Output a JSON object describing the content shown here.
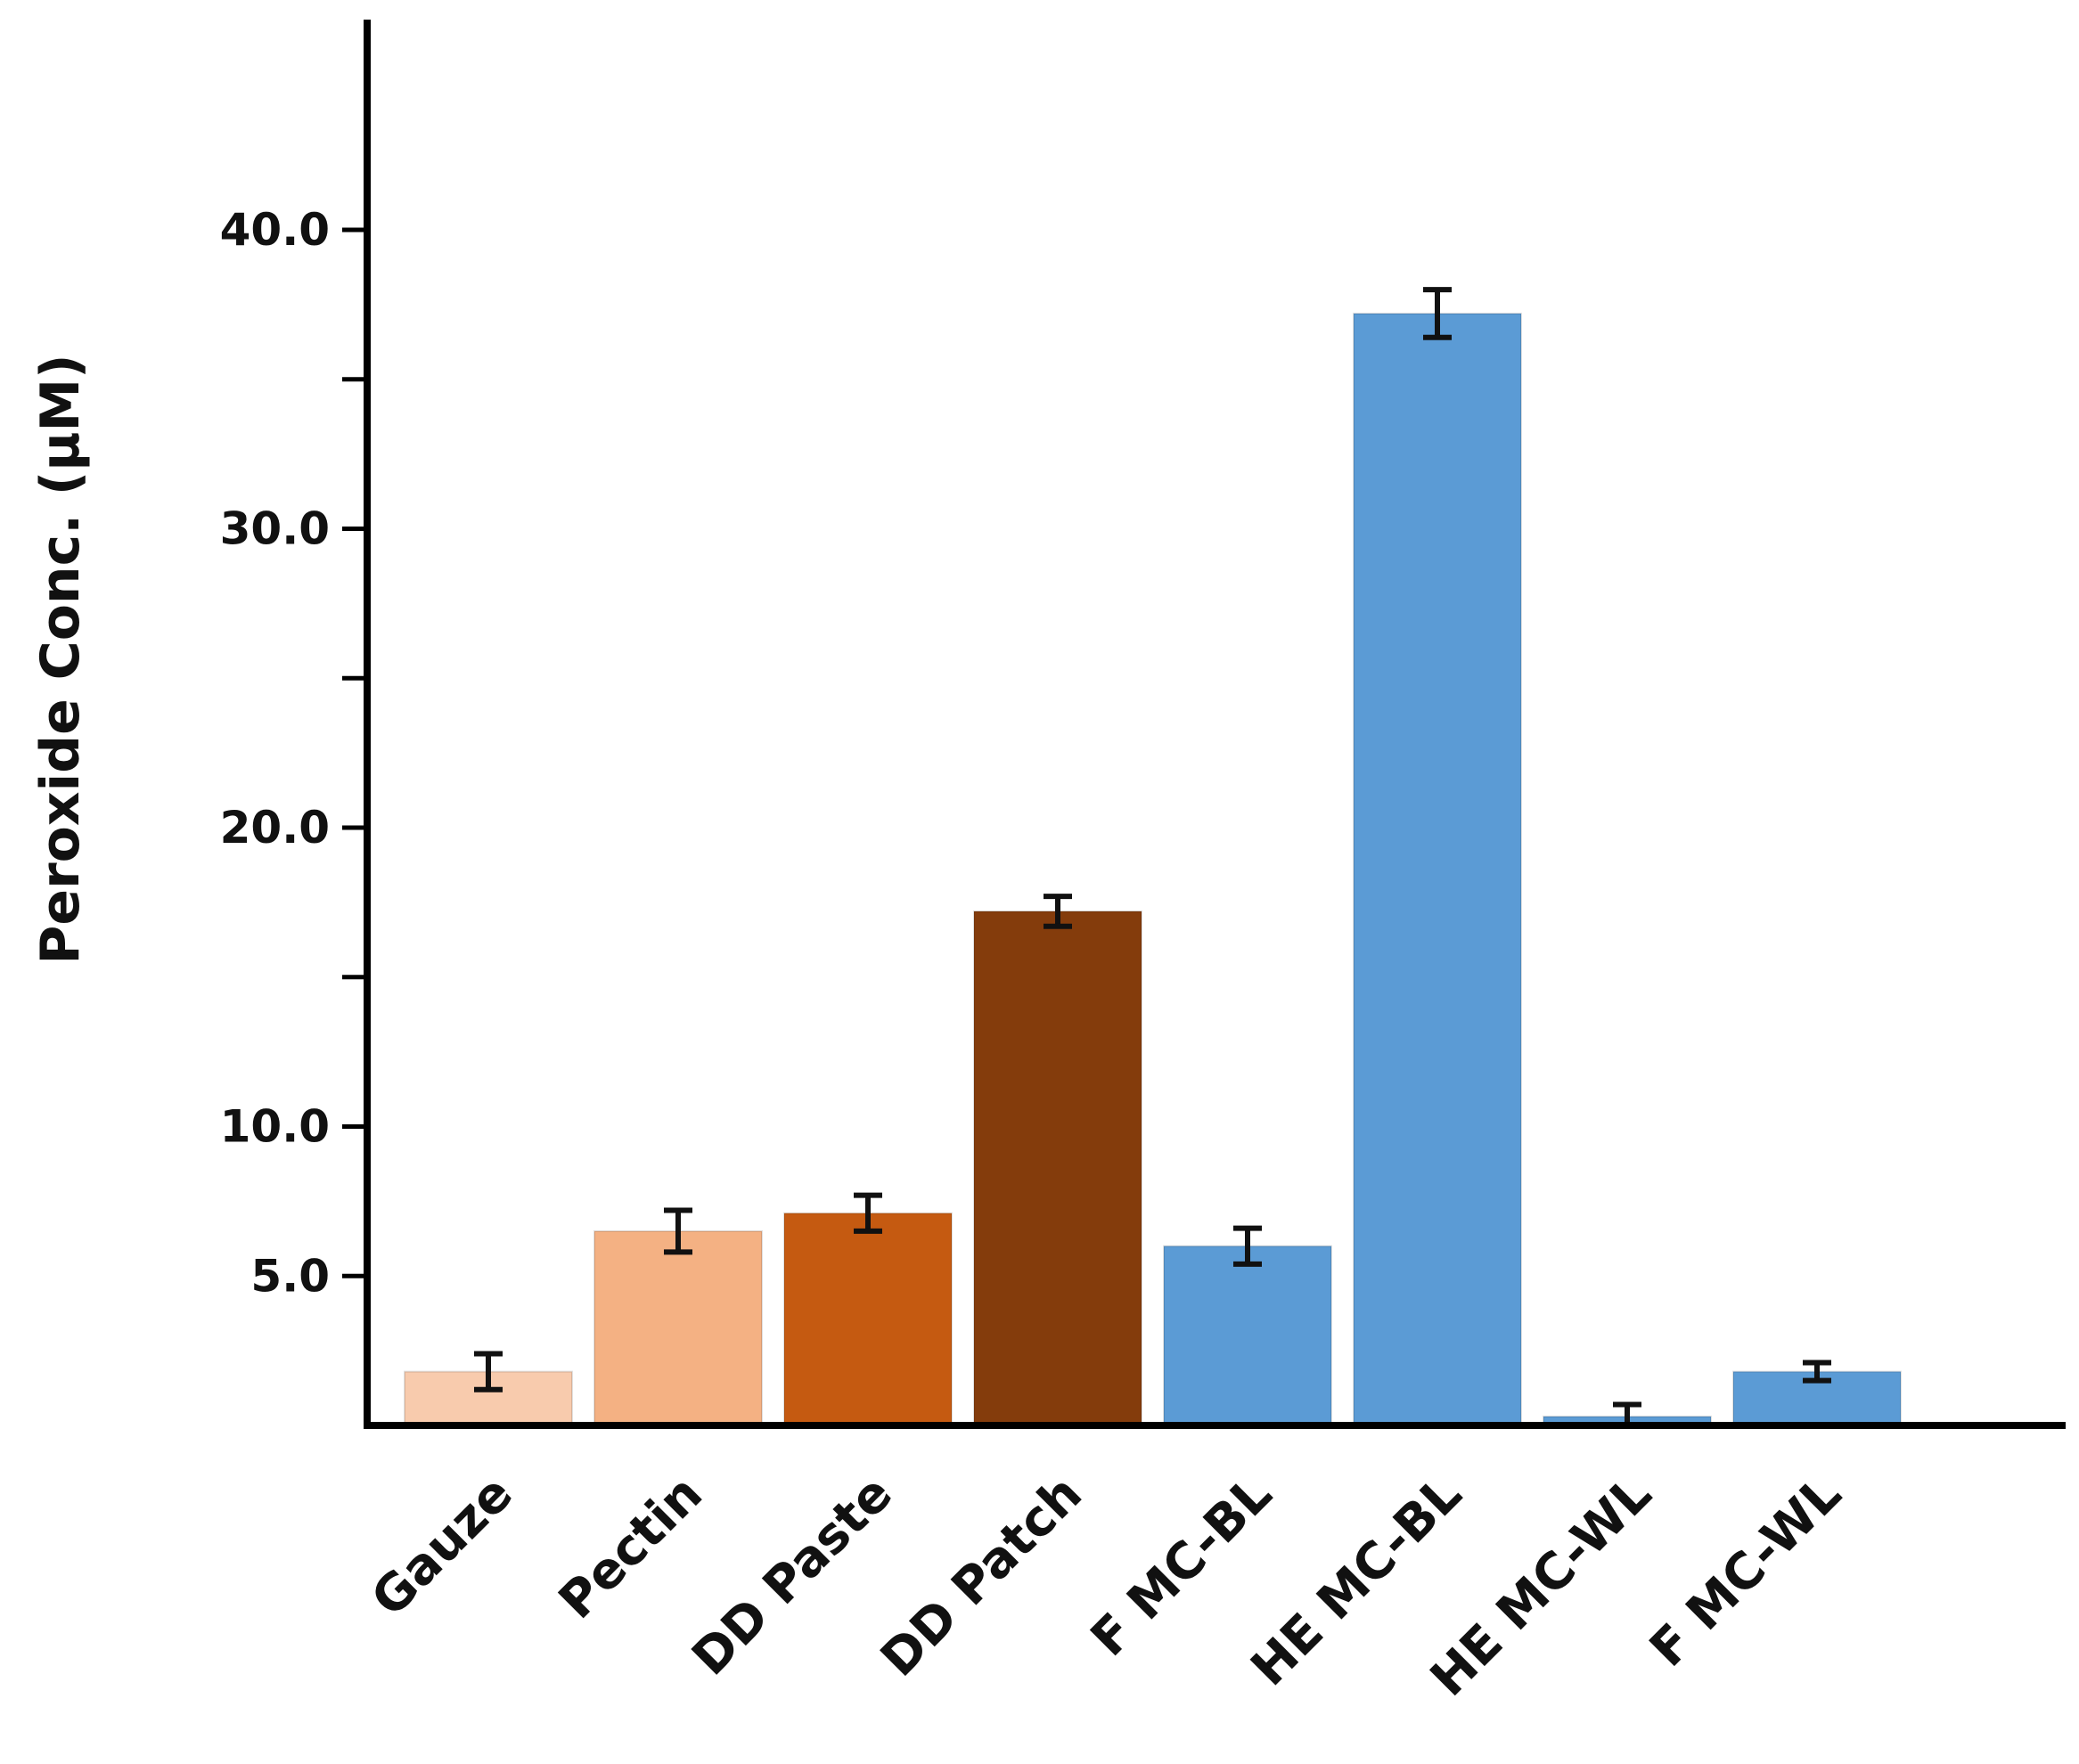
{
  "chart_data": {
    "type": "bar",
    "title": "",
    "xlabel": "",
    "ylabel": "Peroxide Conc. (µM)",
    "ylim": [
      0,
      47
    ],
    "yticks_major": [
      5,
      10,
      20,
      30,
      40
    ],
    "ytick_labels": [
      "5.0",
      "10.0",
      "20.0",
      "30.0",
      "40.0"
    ],
    "yticks_minor": [
      15,
      25,
      35
    ],
    "grid": false,
    "legend": "none",
    "categories": [
      "Gauze",
      "Pectin",
      "DD Paste",
      "DD Patch",
      "F MC-BL",
      "HE MC-BL",
      "HE MC-WL",
      "F MC-WL"
    ],
    "values": [
      1.8,
      6.5,
      7.1,
      17.2,
      6.0,
      37.2,
      0.3,
      1.8
    ],
    "errors": [
      0.6,
      0.7,
      0.6,
      0.5,
      0.6,
      0.8,
      0.4,
      0.3
    ],
    "colors": [
      "#F8CBAD",
      "#F4B183",
      "#C55A11",
      "#843C0C",
      "#5B9BD5",
      "#5B9BD5",
      "#5B9BD5",
      "#5B9BD5"
    ]
  }
}
